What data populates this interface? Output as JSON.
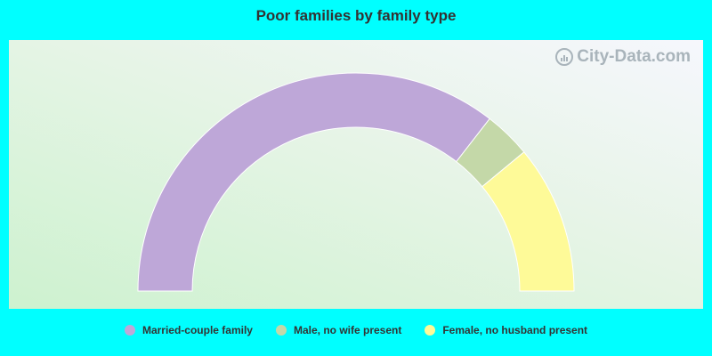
{
  "chart_data": {
    "type": "pie",
    "variant": "half-donut",
    "title": "Poor families by family type",
    "categories": [
      "Married-couple family",
      "Male, no wife present",
      "Female, no husband present"
    ],
    "values": [
      71,
      7,
      22
    ],
    "colors": [
      "#bea7d8",
      "#c4d8a8",
      "#fefa98"
    ],
    "legend_position": "bottom"
  },
  "watermark": {
    "text": "City-Data.com"
  }
}
